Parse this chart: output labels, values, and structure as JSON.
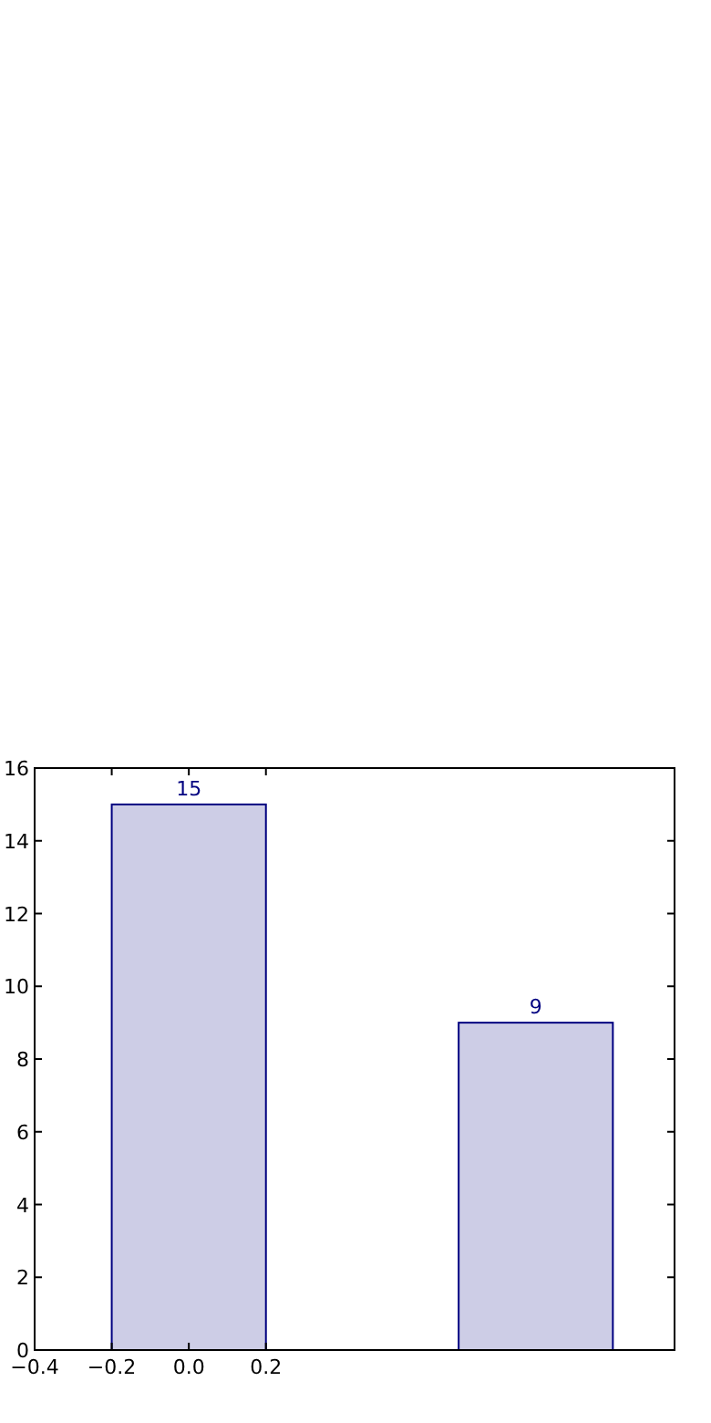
{
  "chart_data": {
    "type": "bar",
    "x": [
      0,
      0.9
    ],
    "values": [
      15,
      9
    ],
    "color": "#cdcde6",
    "data_labels": true,
    "xlim": [
      -0.4,
      1.26
    ],
    "xticks": [
      {
        "value": -0.4,
        "label": "−0.4"
      },
      {
        "value": -0.2,
        "label": "−0.2"
      },
      {
        "value": 0,
        "label": "0.0"
      },
      0.2
    ],
    "ylim": [
      0,
      16
    ],
    "yticks": [
      0,
      2,
      4,
      6,
      8,
      10,
      12,
      14,
      16
    ],
    "grid": false
  }
}
